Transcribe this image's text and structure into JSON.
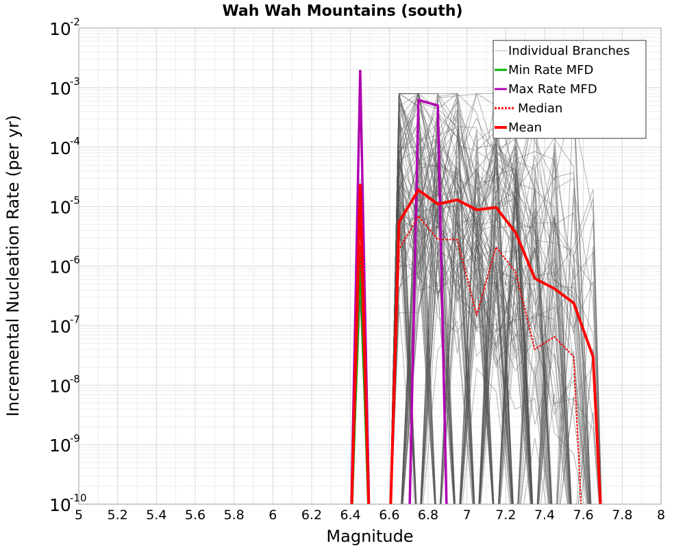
{
  "chart_data": {
    "type": "line",
    "title": "Wah Wah Mountains (south)",
    "xlabel": "Magnitude",
    "ylabel": "Incremental Nucleation Rate (per yr)",
    "xlim": [
      5,
      8
    ],
    "ylim_log10": [
      -10,
      -2
    ],
    "y_scale": "log",
    "grid": true,
    "legend_position": "top-right",
    "x_ticks": [
      "5",
      "5.2",
      "5.4",
      "5.6",
      "5.8",
      "6",
      "6.2",
      "6.4",
      "6.6",
      "6.8",
      "7",
      "7.2",
      "7.4",
      "7.6",
      "7.8",
      "8"
    ],
    "y_ticks": [
      {
        "base": "10",
        "exp": "-2"
      },
      {
        "base": "10",
        "exp": "-3"
      },
      {
        "base": "10",
        "exp": "-4"
      },
      {
        "base": "10",
        "exp": "-5"
      },
      {
        "base": "10",
        "exp": "-6"
      },
      {
        "base": "10",
        "exp": "-7"
      },
      {
        "base": "10",
        "exp": "-8"
      },
      {
        "base": "10",
        "exp": "-9"
      },
      {
        "base": "10",
        "exp": "-10"
      }
    ],
    "legend": [
      {
        "label": "Individual Branches",
        "color": "#b0b0b0",
        "style": "thin"
      },
      {
        "label": "Min Rate MFD",
        "color": "#00b000",
        "style": "solid"
      },
      {
        "label": "Max Rate MFD",
        "color": "#b000b0",
        "style": "solid"
      },
      {
        "label": "Median",
        "color": "#ff0000",
        "style": "dotted"
      },
      {
        "label": "Mean",
        "color": "#ff0000",
        "style": "thick"
      }
    ],
    "series": [
      {
        "name": "Max Rate MFD",
        "color": "#b000b0",
        "x": [
          6.4,
          6.45,
          6.5,
          6.7,
          6.75,
          6.85,
          6.9
        ],
        "y": [
          1e-10,
          0.0019,
          1e-10,
          1e-10,
          0.00062,
          0.0005,
          1e-10
        ]
      },
      {
        "name": "Min Rate MFD",
        "color": "#00b000",
        "x": [
          6.4,
          6.45,
          6.5
        ],
        "y": [
          1e-10,
          1.5e-06,
          1e-10
        ]
      },
      {
        "name": "Median",
        "color": "#ff0000",
        "x": [
          6.4,
          6.45,
          6.5,
          6.6,
          6.65,
          6.75,
          6.85,
          6.95,
          7.05,
          7.15,
          7.25,
          7.35,
          7.45,
          7.55,
          7.6
        ],
        "y": [
          1e-10,
          2.3e-06,
          1e-10,
          1e-10,
          1.9e-06,
          7e-06,
          2.8e-06,
          2.8e-06,
          1.5e-07,
          2.1e-06,
          8e-07,
          4e-08,
          6.5e-08,
          3e-08,
          1e-10
        ]
      },
      {
        "name": "Mean",
        "color": "#ff0000",
        "x": [
          6.4,
          6.45,
          6.5,
          6.6,
          6.65,
          6.75,
          6.85,
          6.95,
          7.05,
          7.15,
          7.25,
          7.35,
          7.45,
          7.55,
          7.65,
          7.7
        ],
        "y": [
          1e-10,
          2.3e-05,
          1e-10,
          1e-10,
          5.5e-06,
          1.9e-05,
          1.1e-05,
          1.3e-05,
          8.8e-06,
          9.7e-06,
          3.7e-06,
          6.2e-07,
          4.2e-07,
          2.4e-07,
          3e-08,
          1e-10
        ]
      }
    ]
  }
}
